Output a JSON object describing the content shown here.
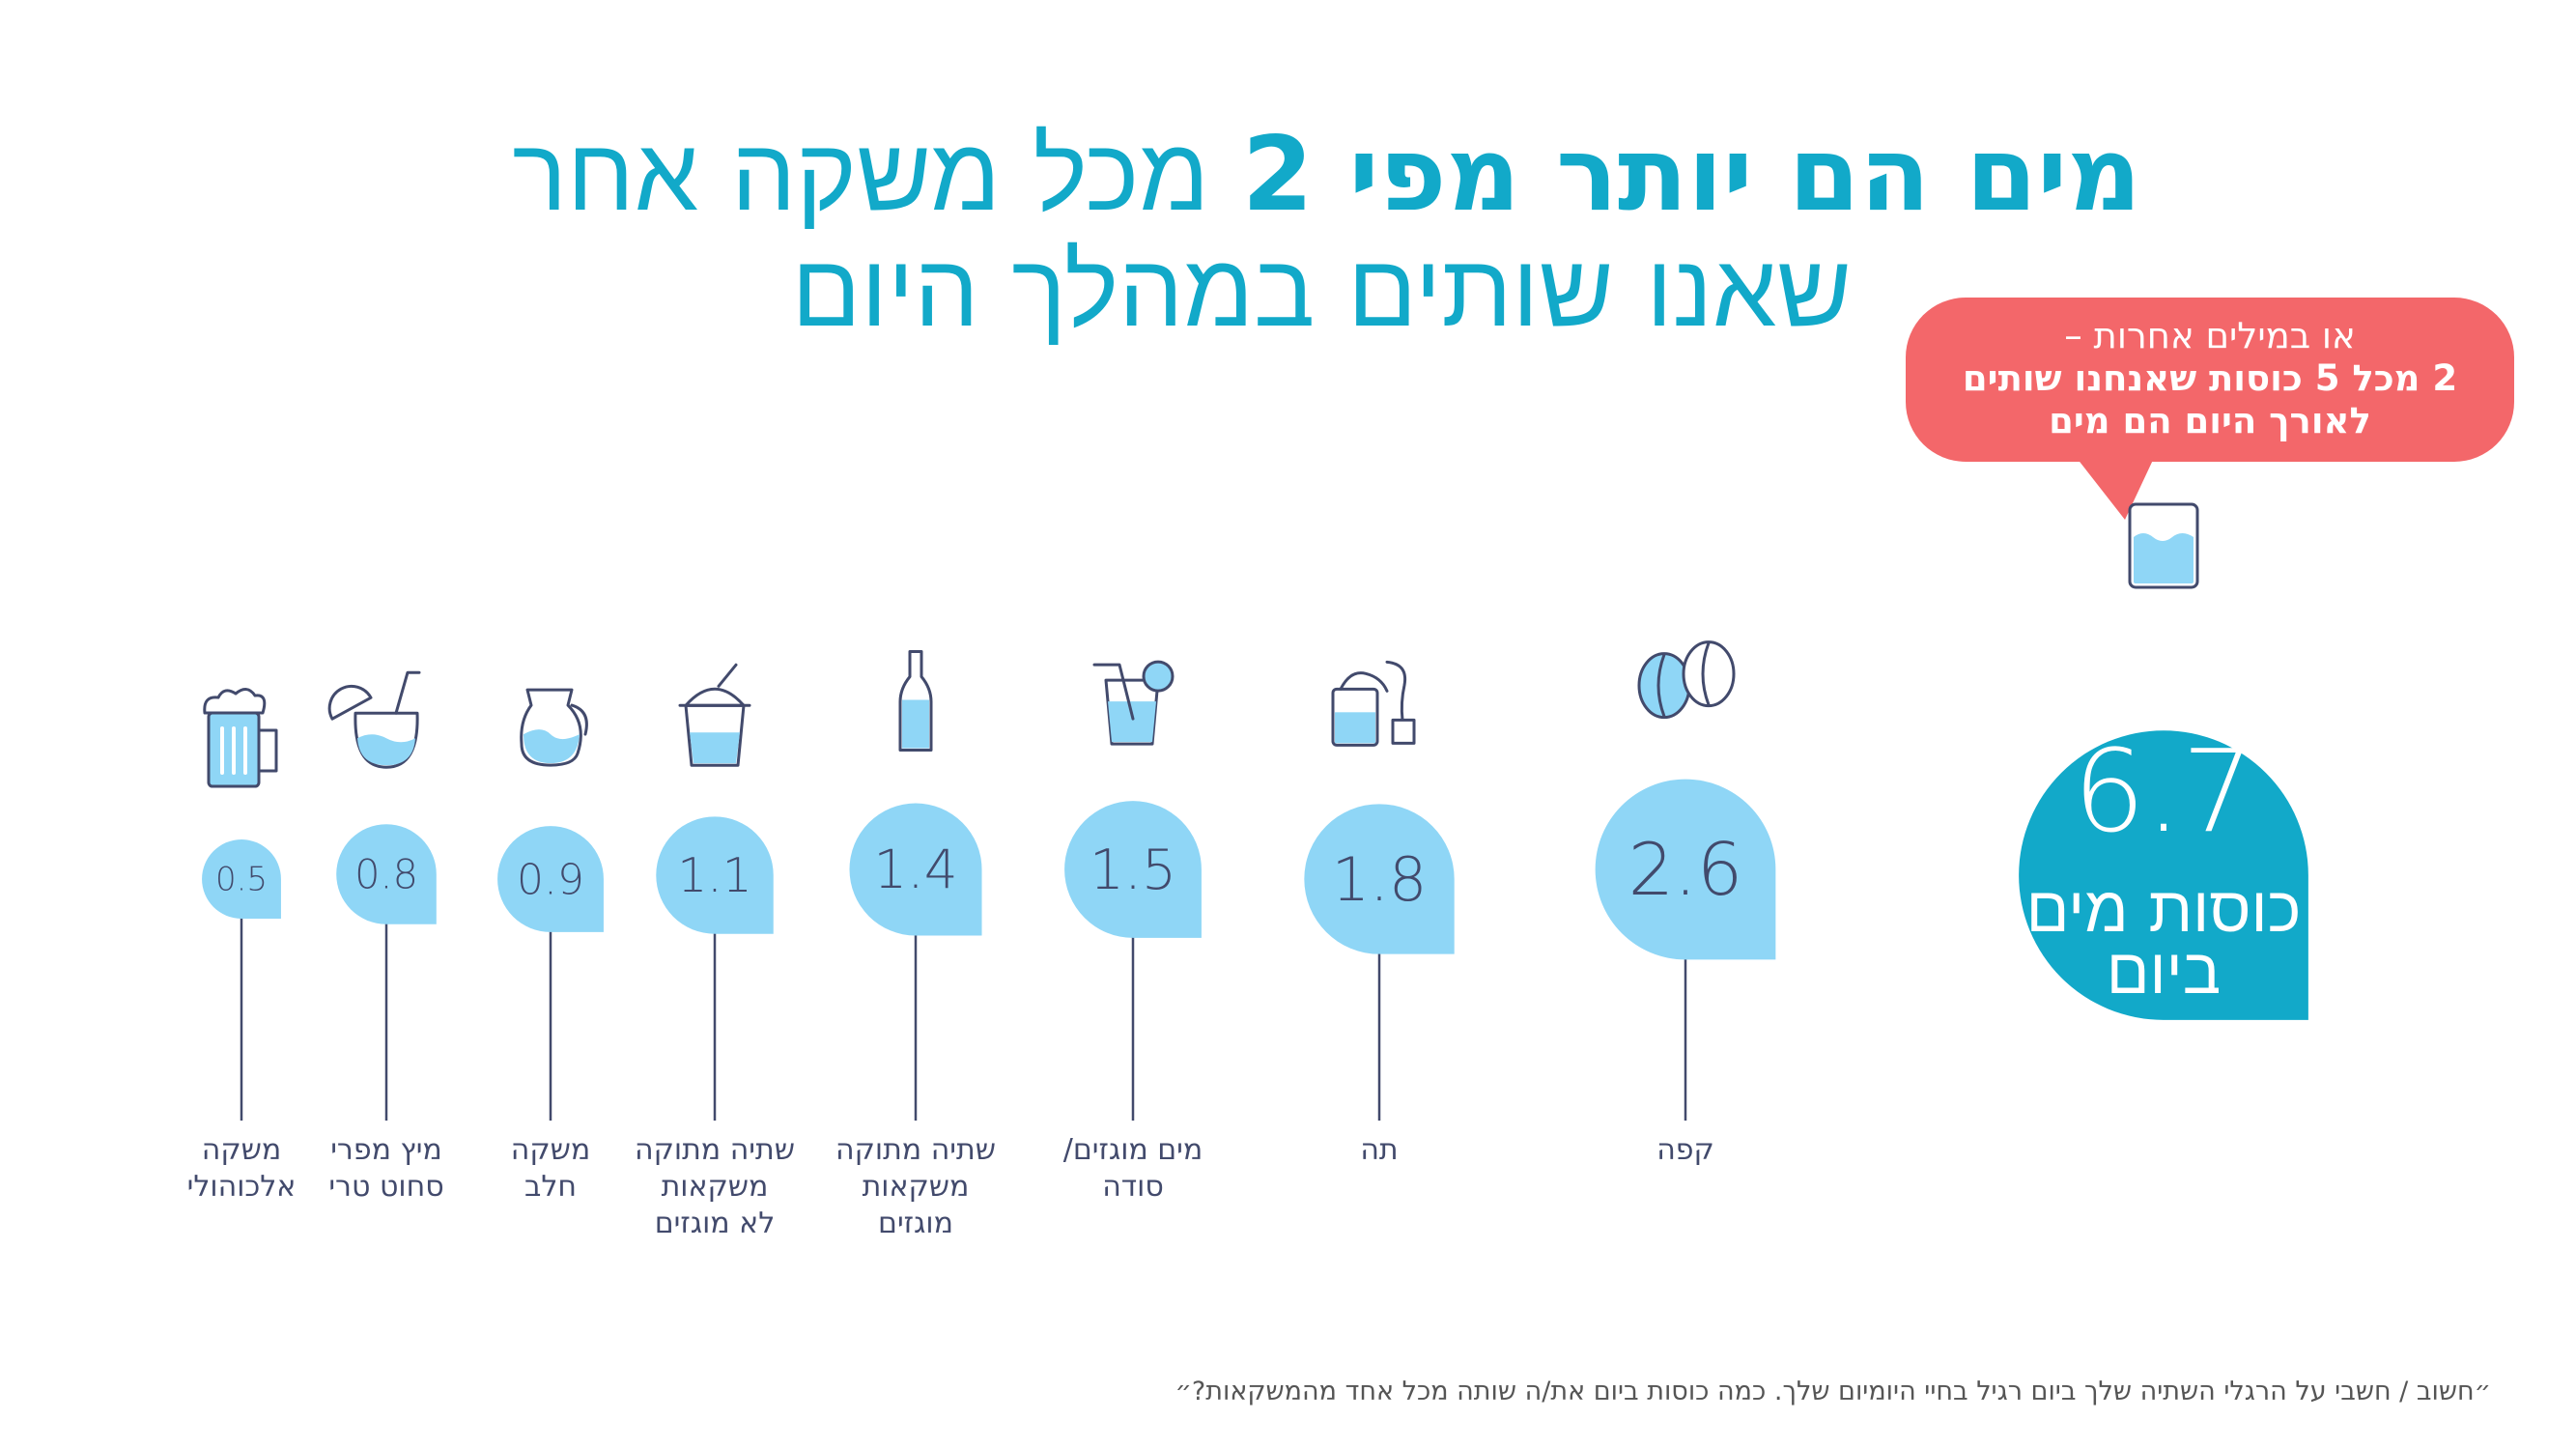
{
  "title": {
    "line1_before": "מים הם יותר מפי 2",
    "line1_after": "מכל משקה אחר",
    "line2": "שאנו שותים במהלך היום"
  },
  "callout": {
    "line1": "או במילים אחרות –",
    "line2": "2 מכל 5 כוסות שאנחנו שותים",
    "line3": "לאורך היום הם מים"
  },
  "water": {
    "value": "6.7",
    "unit_line1": "כוסות מים",
    "unit_line2": "ביום",
    "icon": "water-glass-icon"
  },
  "footnote": "״חשוב / חשבי על הרגלי השתיה שלך ביום רגיל בחיי היומיום שלך. כמה כוסות ביום את/ה שותה מכל אחד מהמשקאות?״",
  "colors": {
    "accent": "#12a9c9",
    "light_bubble": "#8fd6f6",
    "callout": "#f3676a",
    "text": "#424a6c"
  },
  "chart_data": {
    "type": "bar",
    "unit": "כוסות ביום",
    "categories": [
      "מים",
      "קפה",
      "תה",
      "מים מוגזים/סודה",
      "שתיה מתוקה משקאות מוגזים",
      "שתיה מתוקה משקאות לא מוגזים",
      "משקה חלב",
      "מיץ מפרי סחוט טרי",
      "משקה אלכוהולי"
    ],
    "values": [
      6.7,
      2.6,
      1.8,
      1.5,
      1.4,
      1.1,
      0.9,
      0.8,
      0.5
    ],
    "items": [
      {
        "value": "2.6",
        "label": [
          "קפה"
        ],
        "icon": "coffee-beans-icon"
      },
      {
        "value": "1.8",
        "label": [
          "תה"
        ],
        "icon": "tea-bag-icon"
      },
      {
        "value": "1.5",
        "label": [
          "מים מוגזים/",
          "סודה"
        ],
        "icon": "soda-glass-icon"
      },
      {
        "value": "1.4",
        "label": [
          "שתיה מתוקה",
          "משקאות",
          "מוגזים"
        ],
        "icon": "bottle-icon"
      },
      {
        "value": "1.1",
        "label": [
          "שתיה מתוקה",
          "משקאות",
          "לא מוגזים"
        ],
        "icon": "iced-drink-icon"
      },
      {
        "value": "0.9",
        "label": [
          "משקה",
          "חלב"
        ],
        "icon": "milk-jug-icon"
      },
      {
        "value": "0.8",
        "label": [
          "מיץ מפרי",
          "סחוט טרי"
        ],
        "icon": "juice-glass-icon"
      },
      {
        "value": "0.5",
        "label": [
          "משקה",
          "אלכוהולי"
        ],
        "icon": "beer-mug-icon"
      }
    ]
  }
}
